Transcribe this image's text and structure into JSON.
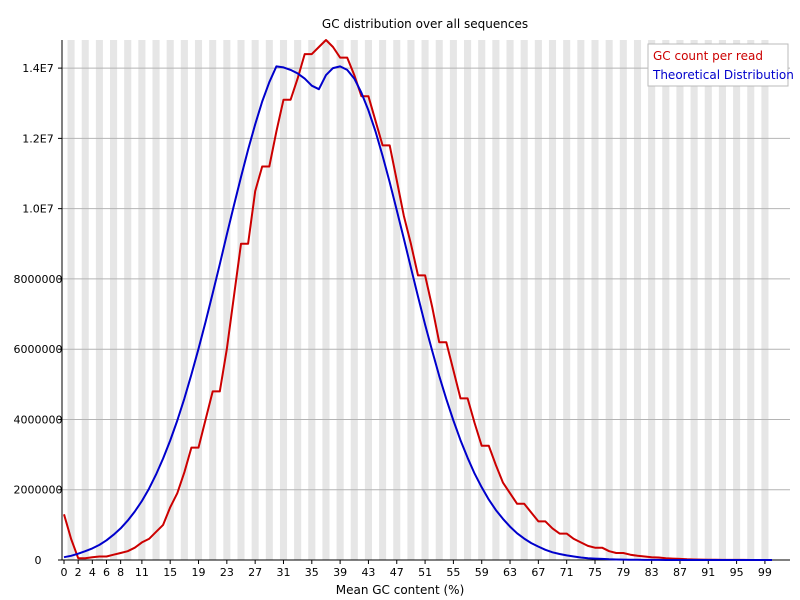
{
  "chart_data": {
    "type": "line",
    "title": "GC distribution over all sequences",
    "xlabel": "Mean GC content (%)",
    "ylabel": "",
    "xlim": [
      0,
      100
    ],
    "ylim": [
      0,
      14800000
    ],
    "grid": true,
    "legend": "top-right",
    "y_ticks": [
      {
        "value": 0,
        "label": "0"
      },
      {
        "value": 2000000,
        "label": "2000000"
      },
      {
        "value": 4000000,
        "label": "4000000"
      },
      {
        "value": 6000000,
        "label": "6000000"
      },
      {
        "value": 8000000,
        "label": "8000000"
      },
      {
        "value": 10000000,
        "label": "1.0E7"
      },
      {
        "value": 12000000,
        "label": "1.2E7"
      },
      {
        "value": 14000000,
        "label": "1.4E7"
      }
    ],
    "x_tick_labels": [
      "0",
      "2",
      "4",
      "6",
      "8",
      "11",
      "15",
      "19",
      "23",
      "27",
      "31",
      "35",
      "39",
      "43",
      "47",
      "51",
      "55",
      "59",
      "63",
      "67",
      "71",
      "75",
      "79",
      "83",
      "87",
      "91",
      "95",
      "99"
    ],
    "x_tick_positions": [
      0,
      2,
      4,
      6,
      8,
      11,
      15,
      19,
      23,
      27,
      31,
      35,
      39,
      43,
      47,
      51,
      55,
      59,
      63,
      67,
      71,
      75,
      79,
      83,
      87,
      91,
      95,
      99
    ],
    "x": [
      0,
      1,
      2,
      3,
      4,
      5,
      6,
      7,
      8,
      9,
      10,
      11,
      12,
      13,
      14,
      15,
      16,
      17,
      18,
      19,
      20,
      21,
      22,
      23,
      24,
      25,
      26,
      27,
      28,
      29,
      30,
      31,
      32,
      33,
      34,
      35,
      36,
      37,
      38,
      39,
      40,
      41,
      42,
      43,
      44,
      45,
      46,
      47,
      48,
      49,
      50,
      51,
      52,
      53,
      54,
      55,
      56,
      57,
      58,
      59,
      60,
      61,
      62,
      63,
      64,
      65,
      66,
      67,
      68,
      69,
      70,
      71,
      72,
      73,
      74,
      75,
      76,
      77,
      78,
      79,
      80,
      81,
      82,
      83,
      84,
      85,
      86,
      87,
      88,
      89,
      90,
      91,
      92,
      93,
      94,
      95,
      96,
      97,
      98,
      99,
      100
    ],
    "series": [
      {
        "name": "GC count per read",
        "color": "#cc0000",
        "values": [
          1300000,
          600000,
          50000,
          50000,
          80000,
          100000,
          100000,
          150000,
          200000,
          250000,
          350000,
          500000,
          600000,
          800000,
          1000000,
          1500000,
          1900000,
          2500000,
          3200000,
          3200000,
          4000000,
          4800000,
          4800000,
          6000000,
          7500000,
          9000000,
          9000000,
          10500000,
          11200000,
          11200000,
          12200000,
          13100000,
          13100000,
          13700000,
          14400000,
          14400000,
          14600000,
          14800000,
          14600000,
          14300000,
          14300000,
          13800000,
          13200000,
          13200000,
          12500000,
          11800000,
          11800000,
          10800000,
          9800000,
          9000000,
          8100000,
          8100000,
          7200000,
          6200000,
          6200000,
          5400000,
          4600000,
          4600000,
          3900000,
          3250000,
          3250000,
          2700000,
          2200000,
          1900000,
          1600000,
          1600000,
          1350000,
          1100000,
          1100000,
          900000,
          750000,
          750000,
          600000,
          500000,
          400000,
          350000,
          350000,
          250000,
          200000,
          200000,
          150000,
          120000,
          100000,
          80000,
          70000,
          50000,
          40000,
          30000,
          20000,
          15000,
          10000,
          8000,
          5000,
          4000,
          3000,
          2000,
          1500,
          1000,
          500,
          200,
          100
        ]
      },
      {
        "name": "Theoretical Distribution",
        "color": "#0000cc",
        "values": [
          80000,
          120000,
          180000,
          250000,
          330000,
          430000,
          560000,
          720000,
          900000,
          1120000,
          1380000,
          1680000,
          2030000,
          2430000,
          2890000,
          3400000,
          3970000,
          4600000,
          5280000,
          6010000,
          6780000,
          7590000,
          8420000,
          9260000,
          10090000,
          10900000,
          11680000,
          12400000,
          13050000,
          13600000,
          14050000,
          14020000,
          13950000,
          13850000,
          13700000,
          13500000,
          13400000,
          13800000,
          14000000,
          14050000,
          13950000,
          13700000,
          13300000,
          12800000,
          12200000,
          11500000,
          10750000,
          9950000,
          9150000,
          8320000,
          7500000,
          6700000,
          5950000,
          5240000,
          4580000,
          3970000,
          3410000,
          2910000,
          2460000,
          2070000,
          1720000,
          1420000,
          1170000,
          950000,
          760000,
          610000,
          480000,
          380000,
          290000,
          220000,
          170000,
          130000,
          100000,
          70000,
          50000,
          40000,
          30000,
          20000,
          15000,
          10000,
          8000,
          5000,
          3000,
          2000,
          1500,
          1000,
          700,
          500,
          300,
          200,
          100,
          80,
          60,
          40,
          30,
          20,
          10,
          5,
          3,
          2,
          1
        ]
      }
    ]
  }
}
